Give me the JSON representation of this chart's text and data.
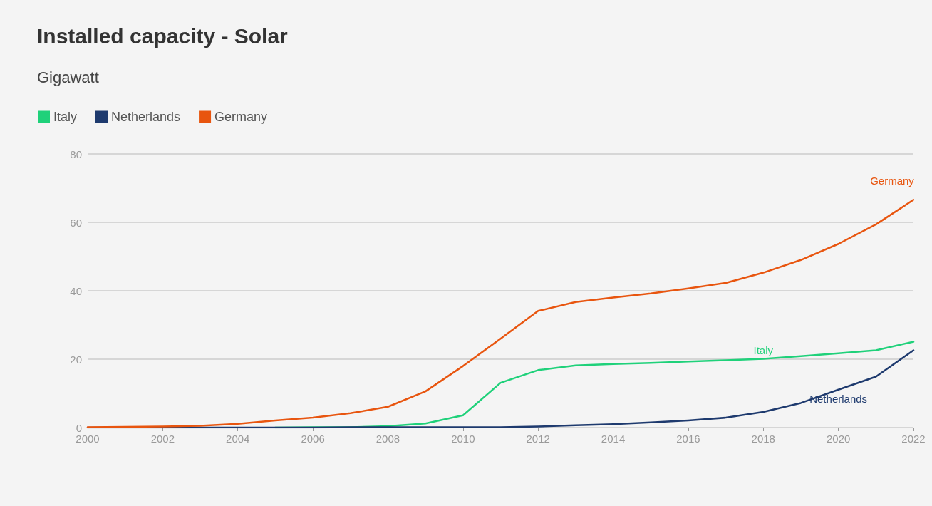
{
  "chart_data": {
    "type": "line",
    "title": "Installed capacity - Solar",
    "subtitle": "Gigawatt",
    "x": [
      2000,
      2001,
      2002,
      2003,
      2004,
      2005,
      2006,
      2007,
      2008,
      2009,
      2010,
      2011,
      2012,
      2013,
      2014,
      2015,
      2016,
      2017,
      2018,
      2019,
      2020,
      2021,
      2022
    ],
    "series": [
      {
        "name": "Italy",
        "color": "#1fd17a",
        "values": [
          null,
          null,
          null,
          null,
          null,
          0.0,
          0.1,
          0.1,
          0.4,
          1.2,
          3.6,
          13.1,
          16.8,
          18.2,
          18.6,
          18.9,
          19.3,
          19.7,
          20.1,
          20.9,
          21.7,
          22.6,
          25.1
        ]
      },
      {
        "name": "Netherlands",
        "color": "#1e3a6e",
        "values": [
          0.0,
          0.0,
          0.0,
          0.0,
          0.0,
          0.0,
          0.0,
          0.1,
          0.1,
          0.1,
          0.1,
          0.1,
          0.3,
          0.7,
          1.0,
          1.5,
          2.1,
          2.9,
          4.6,
          7.2,
          11.1,
          14.9,
          22.6
        ]
      },
      {
        "name": "Germany",
        "color": "#e8550f",
        "values": [
          0.1,
          0.2,
          0.3,
          0.5,
          1.1,
          2.1,
          2.9,
          4.2,
          6.1,
          10.6,
          18.0,
          26.0,
          34.1,
          36.7,
          38.0,
          39.2,
          40.7,
          42.3,
          45.3,
          49.0,
          53.7,
          59.4,
          66.6
        ]
      }
    ],
    "xlim": [
      2000,
      2022
    ],
    "xticks": [
      2000,
      2002,
      2004,
      2006,
      2008,
      2010,
      2012,
      2014,
      2016,
      2018,
      2020,
      2022
    ],
    "ylim": [
      0,
      80
    ],
    "yticks": [
      0,
      20,
      40,
      60,
      80
    ],
    "grid": "y",
    "legend": "top left",
    "marker": "none",
    "line_style": "solid"
  }
}
